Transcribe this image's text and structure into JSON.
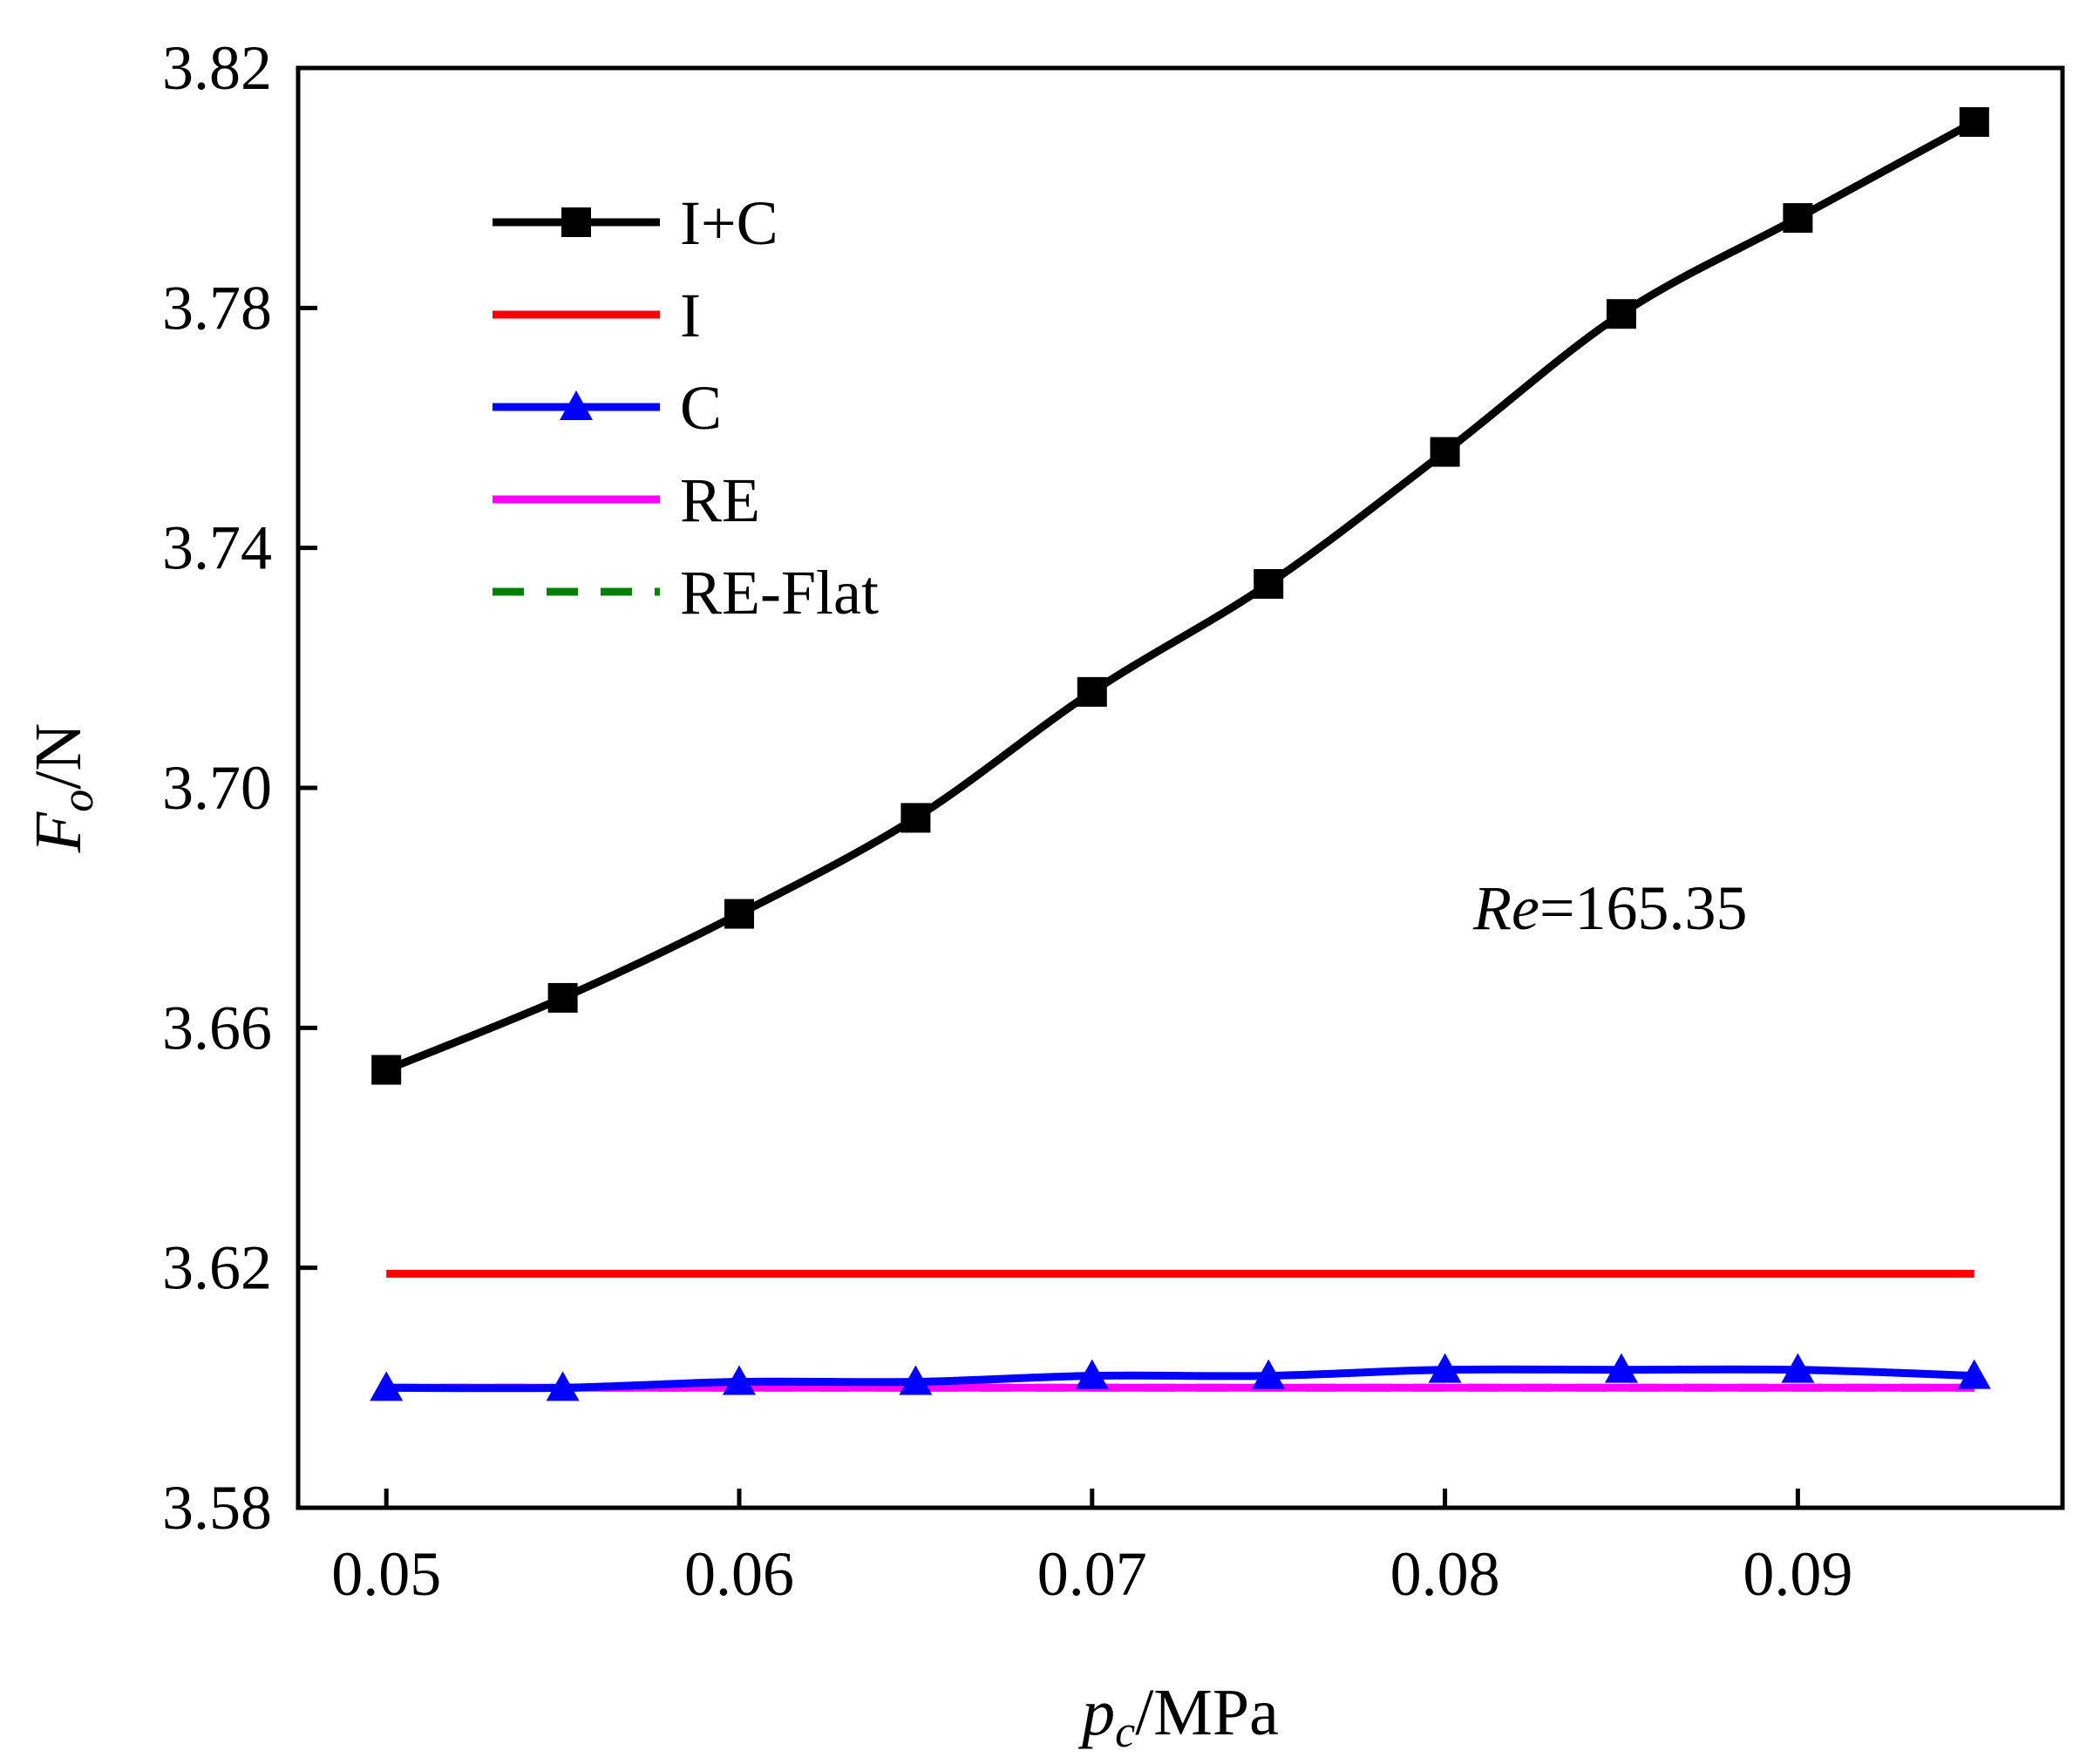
{
  "chart_data": {
    "type": "line",
    "title": "",
    "xlabel": {
      "main": "p",
      "sub": "c",
      "rest": "/MPa"
    },
    "ylabel": {
      "main": "F",
      "sub": "o",
      "rest": "/N"
    },
    "xlim": [
      0.0475,
      0.0975
    ],
    "ylim": [
      3.58,
      3.82
    ],
    "xticks": [
      "0.05",
      "0.06",
      "0.07",
      "0.08",
      "0.09"
    ],
    "xtick_values": [
      0.05,
      0.06,
      0.07,
      0.08,
      0.09
    ],
    "yticks": [
      "3.58",
      "3.62",
      "3.66",
      "3.70",
      "3.74",
      "3.78",
      "3.82"
    ],
    "ytick_values": [
      3.58,
      3.62,
      3.66,
      3.7,
      3.74,
      3.78,
      3.82
    ],
    "x": [
      0.05,
      0.055,
      0.06,
      0.065,
      0.07,
      0.075,
      0.08,
      0.085,
      0.09,
      0.095
    ],
    "series": [
      {
        "name": "I+C",
        "color": "#000000",
        "marker": "square",
        "dash": "",
        "values": [
          3.653,
          3.665,
          3.679,
          3.695,
          3.716,
          3.734,
          3.756,
          3.779,
          3.795,
          3.811
        ]
      },
      {
        "name": "I",
        "color": "#ff0000",
        "marker": "none",
        "dash": "",
        "values": [
          3.619,
          3.619,
          3.619,
          3.619,
          3.619,
          3.619,
          3.619,
          3.619,
          3.619,
          3.619
        ]
      },
      {
        "name": "C",
        "color": "#0000ff",
        "marker": "triangle",
        "dash": "",
        "values": [
          3.6,
          3.6,
          3.601,
          3.601,
          3.602,
          3.602,
          3.603,
          3.603,
          3.603,
          3.602
        ]
      },
      {
        "name": "RE",
        "color": "#ff00ff",
        "marker": "none",
        "dash": "",
        "values": [
          3.6,
          3.6,
          3.6,
          3.6,
          3.6,
          3.6,
          3.6,
          3.6,
          3.6,
          3.6
        ]
      },
      {
        "name": "RE-Flat",
        "color": "#008000",
        "marker": "none",
        "dash": "36,26",
        "values": [
          3.6,
          3.6,
          3.6,
          3.6,
          3.6,
          3.6,
          3.6,
          3.6,
          3.6,
          3.6
        ]
      }
    ],
    "annotation": {
      "italic": "Re",
      "rest": "=165.35"
    },
    "legend_position": "top-left",
    "grid": false
  }
}
